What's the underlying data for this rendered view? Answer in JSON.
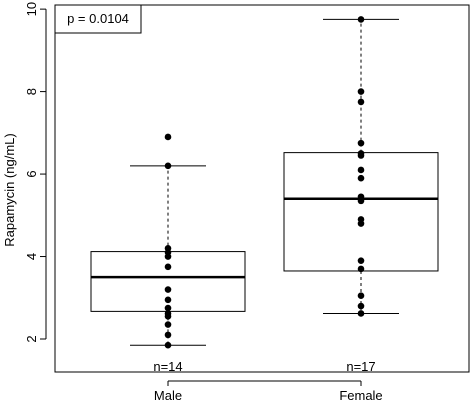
{
  "chart_data": {
    "type": "box",
    "ylabel": "Rapamycin (ng/mL)",
    "ylim": [
      1.2,
      10.1
    ],
    "yticks": [
      2,
      4,
      6,
      8,
      10
    ],
    "annotation": "p = 0.0104",
    "groups": [
      {
        "name": "Male",
        "n_label": "n=14",
        "min": 1.85,
        "q1": 2.67,
        "median": 3.5,
        "q3": 4.12,
        "max": 6.2,
        "points": [
          6.9,
          6.2,
          4.2,
          4.1,
          4.0,
          3.75,
          3.2,
          2.95,
          2.75,
          2.55,
          2.35,
          2.1,
          1.85,
          2.62
        ]
      },
      {
        "name": "Female",
        "n_label": "n=17",
        "min": 2.62,
        "q1": 3.65,
        "median": 5.4,
        "q3": 6.52,
        "max": 9.75,
        "points": [
          9.75,
          8.0,
          7.75,
          6.75,
          6.5,
          6.1,
          5.9,
          5.45,
          5.35,
          4.9,
          4.8,
          3.9,
          3.7,
          3.05,
          2.8,
          2.62,
          6.45
        ]
      }
    ]
  }
}
